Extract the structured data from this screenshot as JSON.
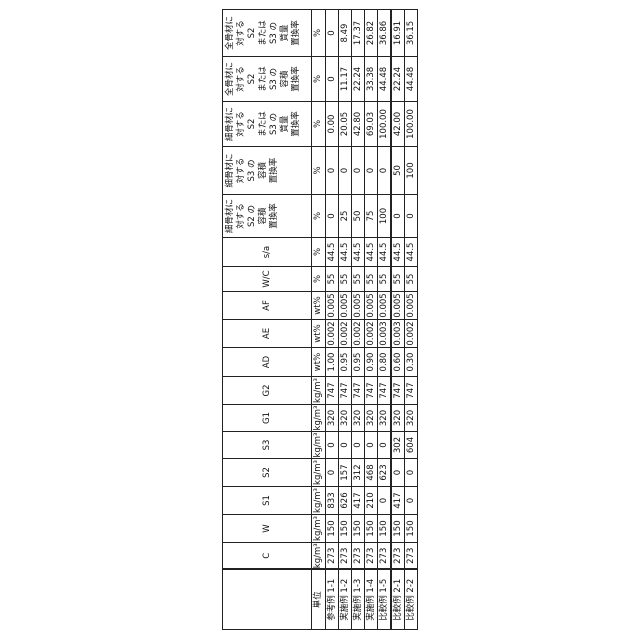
{
  "columns": [
    {
      "key": "label",
      "header": [
        ""
      ],
      "unit": "単位"
    },
    {
      "key": "C",
      "header": [
        "C"
      ],
      "unit": "kg/m³"
    },
    {
      "key": "W",
      "header": [
        "W"
      ],
      "unit": "kg/m³"
    },
    {
      "key": "S1",
      "header": [
        "S1"
      ],
      "unit": "kg/m³"
    },
    {
      "key": "S2",
      "header": [
        "S2"
      ],
      "unit": "kg/m³"
    },
    {
      "key": "S3",
      "header": [
        "S3"
      ],
      "unit": "kg/m³"
    },
    {
      "key": "G1",
      "header": [
        "G1"
      ],
      "unit": "kg/m³"
    },
    {
      "key": "G2",
      "header": [
        "G2"
      ],
      "unit": "kg/m³"
    },
    {
      "key": "AD",
      "header": [
        "AD"
      ],
      "unit": "wt%"
    },
    {
      "key": "AE",
      "header": [
        "AE"
      ],
      "unit": "wt%"
    },
    {
      "key": "AF",
      "header": [
        "AF"
      ],
      "unit": "wt%"
    },
    {
      "key": "WC",
      "header": [
        "W/C"
      ],
      "unit": "%"
    },
    {
      "key": "sa",
      "header": [
        "s/a"
      ],
      "unit": "%"
    },
    {
      "key": "r1",
      "header": [
        "細骨材に",
        "対する",
        "S2 の",
        "容積",
        "置換率"
      ],
      "unit": "%"
    },
    {
      "key": "r2",
      "header": [
        "細骨材に",
        "対する",
        "S3 の",
        "容積",
        "置換率"
      ],
      "unit": "%"
    },
    {
      "key": "r3",
      "header": [
        "細骨材に",
        "対する",
        "S2",
        "または",
        "S3 の",
        "質量",
        "置換率"
      ],
      "unit": "%"
    },
    {
      "key": "r4",
      "header": [
        "全骨材に",
        "対する",
        "S2",
        "または",
        "S3 の",
        "容積",
        "置換率"
      ],
      "unit": "%"
    },
    {
      "key": "r5",
      "header": [
        "全骨材に",
        "対する",
        "S2",
        "または",
        "S3 の",
        "質量",
        "置換率"
      ],
      "unit": "%"
    }
  ],
  "rows": [
    [
      "参考例 1-1",
      "273",
      "150",
      "833",
      "0",
      "0",
      "320",
      "747",
      "1.00",
      "0.002",
      "0.005",
      "55",
      "44.5",
      "0",
      "0",
      "0.00",
      "0",
      "0"
    ],
    [
      "実施例 1-2",
      "273",
      "150",
      "626",
      "157",
      "0",
      "320",
      "747",
      "0.95",
      "0.002",
      "0.005",
      "55",
      "44.5",
      "25",
      "0",
      "20.05",
      "11.17",
      "8.49"
    ],
    [
      "実施例 1-3",
      "273",
      "150",
      "417",
      "312",
      "0",
      "320",
      "747",
      "0.95",
      "0.002",
      "0.005",
      "55",
      "44.5",
      "50",
      "0",
      "42.80",
      "22.24",
      "17.37"
    ],
    [
      "実施例 1-4",
      "273",
      "150",
      "210",
      "468",
      "0",
      "320",
      "747",
      "0.90",
      "0.002",
      "0.005",
      "55",
      "44.5",
      "75",
      "0",
      "69.03",
      "33.38",
      "26.82"
    ],
    [
      "比較例 1-5",
      "273",
      "150",
      "0",
      "623",
      "0",
      "320",
      "747",
      "0.80",
      "0.003",
      "0.005",
      "55",
      "44.5",
      "100",
      "0",
      "100.00",
      "44.48",
      "36.86"
    ],
    [
      "比較例 2-1",
      "273",
      "150",
      "417",
      "0",
      "302",
      "320",
      "747",
      "0.60",
      "0.003",
      "0.005",
      "55",
      "44.5",
      "0",
      "50",
      "42.00",
      "22.24",
      "16.91"
    ],
    [
      "比較例 2-2",
      "273",
      "150",
      "0",
      "0",
      "604",
      "320",
      "747",
      "0.30",
      "0.002",
      "0.005",
      "55",
      "44.5",
      "0",
      "100",
      "100.00",
      "44.48",
      "36.15"
    ]
  ]
}
